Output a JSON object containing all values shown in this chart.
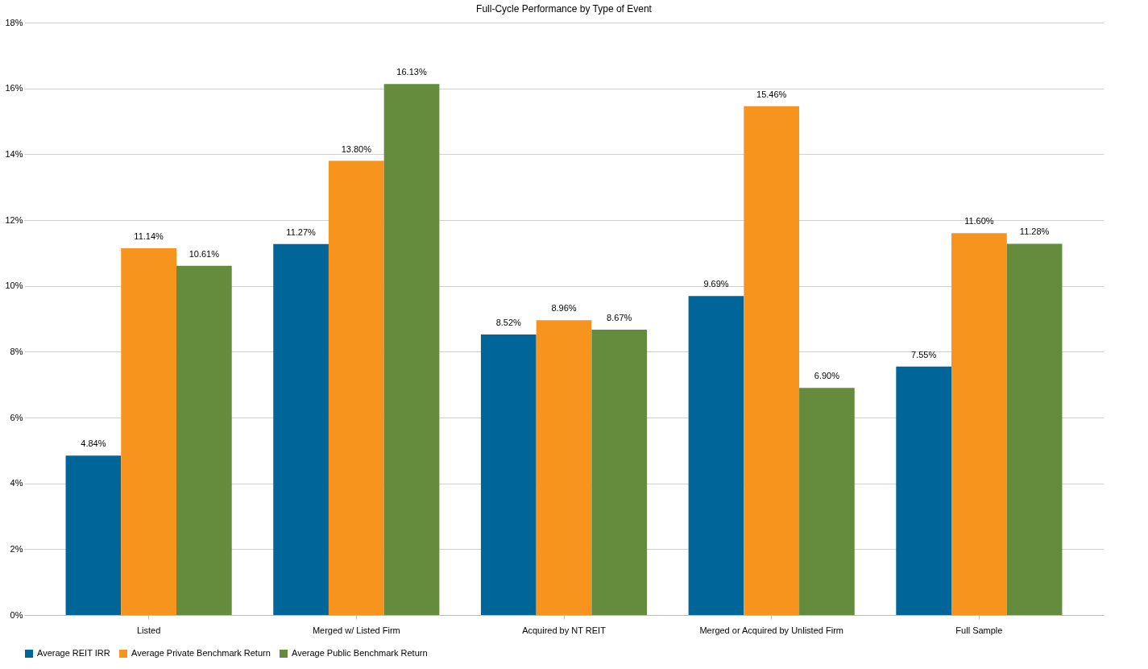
{
  "chart_data": {
    "type": "bar",
    "title": "Full-Cycle Performance  by Type of Event",
    "categories": [
      "Listed",
      "Merged w/ Listed Firm",
      "Acquired by NT REIT",
      "Merged or Acquired by Unlisted Firm",
      "Full Sample"
    ],
    "series": [
      {
        "name": "Average REIT IRR",
        "color": "#00669a",
        "values": [
          4.84,
          11.27,
          8.52,
          9.69,
          7.55
        ],
        "value_labels": [
          "4.84%",
          "11.27%",
          "8.52%",
          "9.69%",
          "7.55%"
        ]
      },
      {
        "name": "Average Private Benchmark Return",
        "color": "#f7941d",
        "values": [
          11.14,
          13.8,
          8.96,
          15.46,
          11.6
        ],
        "value_labels": [
          "11.14%",
          "13.80%",
          "8.96%",
          "15.46%",
          "11.60%"
        ]
      },
      {
        "name": "Average Public Benchmark Return",
        "color": "#648c3c",
        "values": [
          10.61,
          16.13,
          8.67,
          6.9,
          11.28
        ],
        "value_labels": [
          "10.61%",
          "16.13%",
          "8.67%",
          "6.90%",
          "11.28%"
        ]
      }
    ],
    "ylim": [
      0,
      18
    ],
    "yticks": [
      {
        "value": 0,
        "label": "0%"
      },
      {
        "value": 2,
        "label": "2%"
      },
      {
        "value": 4,
        "label": "4%"
      },
      {
        "value": 6,
        "label": "6%"
      },
      {
        "value": 8,
        "label": "8%"
      },
      {
        "value": 10,
        "label": "10%"
      },
      {
        "value": 12,
        "label": "12%"
      },
      {
        "value": 14,
        "label": "14%"
      },
      {
        "value": 16,
        "label": "16%"
      },
      {
        "value": 18,
        "label": "18%"
      }
    ],
    "grid": "y",
    "legend": "bottom"
  }
}
